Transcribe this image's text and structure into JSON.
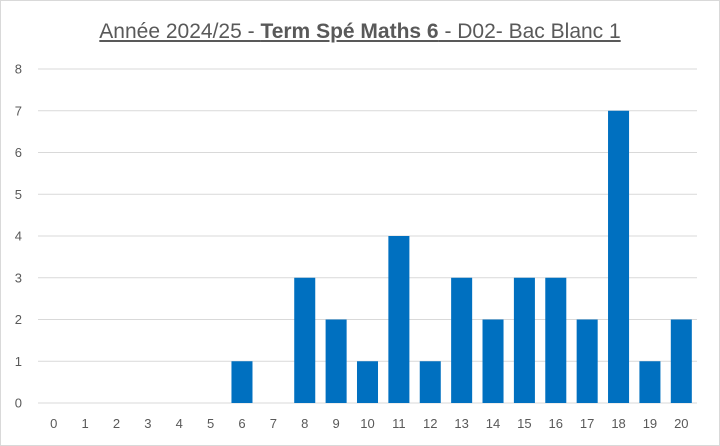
{
  "chart_data": {
    "type": "bar",
    "title_parts": {
      "pre": "Année 2024/25 - ",
      "bold": "Term Spé Maths 6",
      "post": " - D02- Bac Blanc 1"
    },
    "categories": [
      "0",
      "1",
      "2",
      "3",
      "4",
      "5",
      "6",
      "7",
      "8",
      "9",
      "10",
      "11",
      "12",
      "13",
      "14",
      "15",
      "16",
      "17",
      "18",
      "19",
      "20"
    ],
    "values": [
      0,
      0,
      0,
      0,
      0,
      0,
      1,
      0,
      3,
      2,
      1,
      4,
      1,
      3,
      2,
      3,
      3,
      2,
      7,
      1,
      2
    ],
    "ylim": [
      0,
      8
    ],
    "y_ticks": [
      "0",
      "1",
      "2",
      "3",
      "4",
      "5",
      "6",
      "7",
      "8"
    ],
    "grid": true,
    "legend": "none",
    "bar_color": "#0070C0",
    "grid_color": "#d9d9d9"
  }
}
